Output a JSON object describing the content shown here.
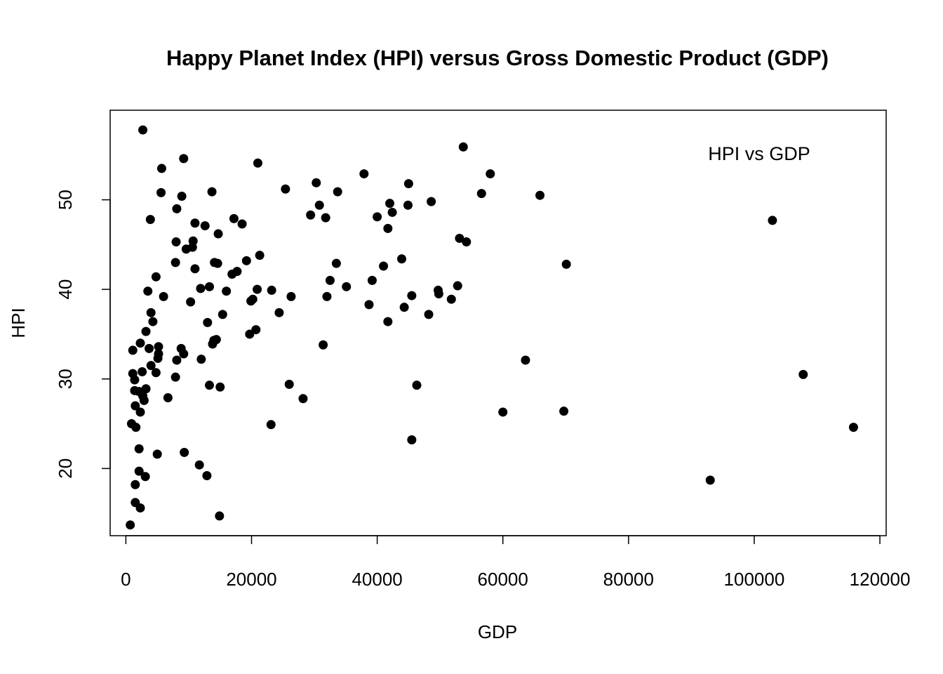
{
  "chart_data": {
    "type": "scatter",
    "title": "Happy Planet Index (HPI) versus Gross Domestic Product (GDP)",
    "xlabel": "GDP",
    "ylabel": "HPI",
    "xlim": [
      -2500,
      121000
    ],
    "ylim": [
      12.5,
      60
    ],
    "x_ticks": [
      0,
      20000,
      40000,
      60000,
      80000,
      100000,
      120000
    ],
    "x_tick_labels": [
      "0",
      "20000",
      "40000",
      "60000",
      "80000",
      "100000",
      "120000"
    ],
    "y_ticks": [
      20,
      30,
      40,
      50
    ],
    "y_tick_labels": [
      "20",
      "30",
      "40",
      "50"
    ],
    "grid": false,
    "legend": {
      "text": "HPI vs GDP",
      "placement": "top-right"
    },
    "point_color": "#000000",
    "series": [
      {
        "points": [
          [
            2700,
            57.8
          ],
          [
            9200,
            54.6
          ],
          [
            5700,
            53.5
          ],
          [
            21000,
            54.1
          ],
          [
            53700,
            55.9
          ],
          [
            37900,
            52.9
          ],
          [
            58000,
            52.9
          ],
          [
            30300,
            51.9
          ],
          [
            45000,
            51.8
          ],
          [
            25400,
            51.2
          ],
          [
            5600,
            50.8
          ],
          [
            8900,
            50.4
          ],
          [
            13700,
            50.9
          ],
          [
            33700,
            50.9
          ],
          [
            56600,
            50.7
          ],
          [
            65900,
            50.5
          ],
          [
            30800,
            49.4
          ],
          [
            42000,
            49.6
          ],
          [
            44900,
            49.4
          ],
          [
            48600,
            49.8
          ],
          [
            8100,
            49.0
          ],
          [
            29400,
            48.3
          ],
          [
            31800,
            48.0
          ],
          [
            40000,
            48.1
          ],
          [
            42400,
            48.6
          ],
          [
            102900,
            47.7
          ],
          [
            3900,
            47.8
          ],
          [
            11000,
            47.4
          ],
          [
            12600,
            47.1
          ],
          [
            17200,
            47.9
          ],
          [
            18500,
            47.3
          ],
          [
            41700,
            46.8
          ],
          [
            14700,
            46.2
          ],
          [
            53100,
            45.7
          ],
          [
            54200,
            45.3
          ],
          [
            8000,
            45.3
          ],
          [
            10600,
            44.7
          ],
          [
            10700,
            45.4
          ],
          [
            9600,
            44.5
          ],
          [
            21300,
            43.8
          ],
          [
            7900,
            43.0
          ],
          [
            14100,
            43.0
          ],
          [
            14600,
            42.9
          ],
          [
            19200,
            43.2
          ],
          [
            33500,
            42.9
          ],
          [
            43900,
            43.4
          ],
          [
            70100,
            42.8
          ],
          [
            41000,
            42.6
          ],
          [
            11000,
            42.3
          ],
          [
            17700,
            42.0
          ],
          [
            16900,
            41.7
          ],
          [
            4800,
            41.4
          ],
          [
            32500,
            41.0
          ],
          [
            39200,
            41.0
          ],
          [
            13300,
            40.3
          ],
          [
            11900,
            40.1
          ],
          [
            35100,
            40.3
          ],
          [
            52800,
            40.4
          ],
          [
            16000,
            39.8
          ],
          [
            20900,
            40.0
          ],
          [
            23200,
            39.9
          ],
          [
            49700,
            39.9
          ],
          [
            3500,
            39.8
          ],
          [
            6000,
            39.2
          ],
          [
            26300,
            39.2
          ],
          [
            32000,
            39.2
          ],
          [
            45500,
            39.3
          ],
          [
            49800,
            39.5
          ],
          [
            51800,
            38.9
          ],
          [
            10300,
            38.6
          ],
          [
            20200,
            38.9
          ],
          [
            19900,
            38.7
          ],
          [
            38700,
            38.3
          ],
          [
            44300,
            38.0
          ],
          [
            4000,
            37.4
          ],
          [
            15400,
            37.2
          ],
          [
            24400,
            37.4
          ],
          [
            48200,
            37.2
          ],
          [
            4300,
            36.4
          ],
          [
            13000,
            36.3
          ],
          [
            41700,
            36.4
          ],
          [
            20700,
            35.5
          ],
          [
            3200,
            35.3
          ],
          [
            19700,
            35.0
          ],
          [
            14400,
            34.4
          ],
          [
            14000,
            34.3
          ],
          [
            13800,
            33.9
          ],
          [
            31400,
            33.8
          ],
          [
            2300,
            34.0
          ],
          [
            3700,
            33.4
          ],
          [
            5200,
            33.6
          ],
          [
            5200,
            32.8
          ],
          [
            8800,
            33.4
          ],
          [
            9200,
            32.8
          ],
          [
            1100,
            33.2
          ],
          [
            5100,
            32.3
          ],
          [
            12000,
            32.2
          ],
          [
            8100,
            32.1
          ],
          [
            63600,
            32.1
          ],
          [
            4000,
            31.5
          ],
          [
            2600,
            30.8
          ],
          [
            1100,
            30.6
          ],
          [
            4800,
            30.7
          ],
          [
            107800,
            30.5
          ],
          [
            7900,
            30.2
          ],
          [
            1400,
            29.9
          ],
          [
            13300,
            29.3
          ],
          [
            15000,
            29.1
          ],
          [
            26000,
            29.4
          ],
          [
            46300,
            29.3
          ],
          [
            3200,
            28.9
          ],
          [
            1400,
            28.7
          ],
          [
            2100,
            28.6
          ],
          [
            2700,
            28.1
          ],
          [
            6700,
            27.9
          ],
          [
            28200,
            27.8
          ],
          [
            2900,
            27.6
          ],
          [
            1500,
            27.0
          ],
          [
            2300,
            26.3
          ],
          [
            60000,
            26.3
          ],
          [
            69700,
            26.4
          ],
          [
            900,
            25.0
          ],
          [
            1600,
            24.6
          ],
          [
            23100,
            24.9
          ],
          [
            115800,
            24.6
          ],
          [
            45500,
            23.2
          ],
          [
            2100,
            22.2
          ],
          [
            9300,
            21.8
          ],
          [
            5000,
            21.6
          ],
          [
            11700,
            20.4
          ],
          [
            2100,
            19.7
          ],
          [
            3100,
            19.1
          ],
          [
            12900,
            19.2
          ],
          [
            93000,
            18.7
          ],
          [
            1500,
            18.2
          ],
          [
            1500,
            16.2
          ],
          [
            2300,
            15.6
          ],
          [
            14900,
            14.7
          ],
          [
            700,
            13.7
          ]
        ]
      }
    ]
  }
}
